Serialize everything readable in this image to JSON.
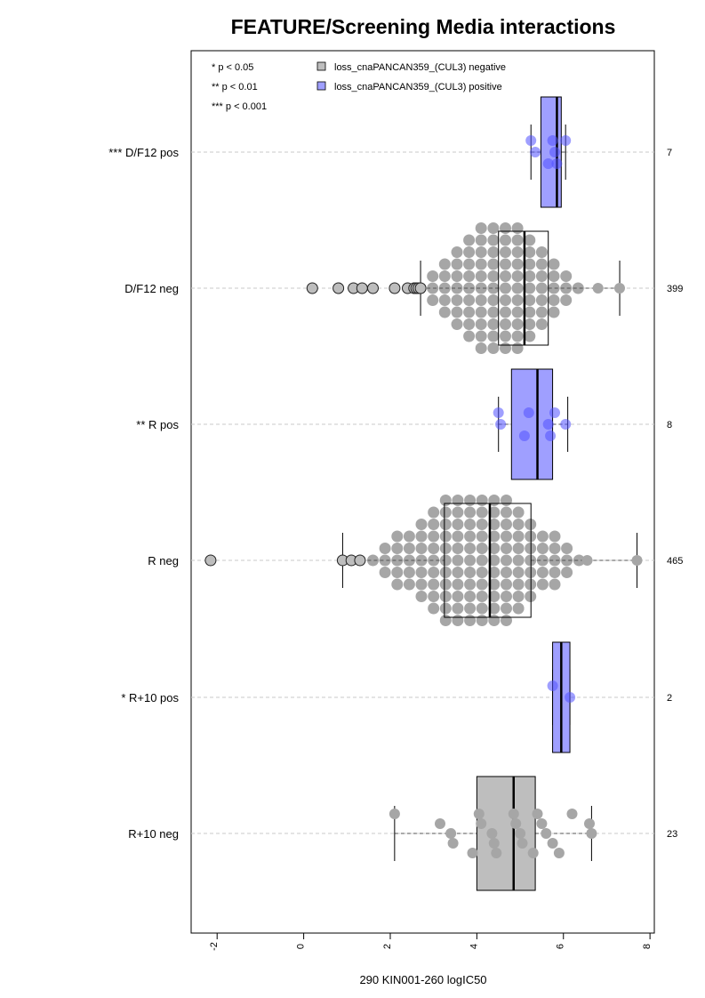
{
  "chart_data": {
    "type": "box",
    "title": "FEATURE/Screening Media interactions",
    "xlabel": "290 KIN001-260 logIC50",
    "xlim": [
      -2.6,
      8.1
    ],
    "xticks": [
      "-2",
      "0",
      "2",
      "4",
      "6",
      "8"
    ],
    "legend": {
      "placement": "top",
      "significance": [
        "* p < 0.05",
        "** p < 0.01",
        "*** p < 0.001"
      ],
      "entries": [
        {
          "label": "loss_cnaPANCAN359_(CUL3) negative",
          "color": "#bebebe"
        },
        {
          "label": "loss_cnaPANCAN359_(CUL3) positive",
          "color": "#9f9fff"
        }
      ]
    },
    "groups": [
      {
        "label": "*** D/F12 pos",
        "count": "7",
        "status": "positive",
        "whisker_low": 5.25,
        "q1": 5.48,
        "median": 5.85,
        "q3": 5.95,
        "whisker_high": 6.05,
        "points": [
          5.25,
          5.35,
          5.65,
          5.75,
          5.8,
          5.85,
          6.05
        ]
      },
      {
        "label": "D/F12 neg",
        "count": "399",
        "status": "negative",
        "whisker_low": 2.7,
        "q1": 4.5,
        "median": 5.1,
        "q3": 5.65,
        "whisker_high": 7.3,
        "points": [
          0.2,
          0.8,
          1.15,
          1.35,
          1.6,
          2.1,
          2.4,
          2.55,
          2.6,
          2.65,
          2.7,
          6.8,
          7.3
        ]
      },
      {
        "label": "** R pos",
        "count": "8",
        "status": "positive",
        "whisker_low": 4.5,
        "q1": 4.8,
        "median": 5.4,
        "q3": 5.75,
        "whisker_high": 6.1,
        "points": [
          4.5,
          4.55,
          5.1,
          5.2,
          5.65,
          5.7,
          5.8,
          6.05
        ]
      },
      {
        "label": "R neg",
        "count": "465",
        "status": "negative",
        "whisker_low": 0.9,
        "q1": 3.25,
        "median": 4.3,
        "q3": 5.25,
        "whisker_high": 7.7,
        "points": [
          -2.15,
          0.9,
          1.1,
          1.3,
          6.55,
          7.7
        ]
      },
      {
        "label": "* R+10 pos",
        "count": "2",
        "status": "positive",
        "whisker_low": 5.75,
        "q1": 5.75,
        "median": 5.95,
        "q3": 6.15,
        "whisker_high": 6.15,
        "points": [
          5.75,
          6.15
        ]
      },
      {
        "label": "R+10 neg",
        "count": "23",
        "status": "negative",
        "whisker_low": 2.1,
        "q1": 4.0,
        "median": 4.85,
        "q3": 5.35,
        "whisker_high": 6.65,
        "points": [
          2.1,
          3.15,
          3.4,
          3.45,
          3.9,
          4.05,
          4.1,
          4.35,
          4.4,
          4.45,
          4.85,
          4.9,
          5.0,
          5.05,
          5.3,
          5.4,
          5.5,
          5.6,
          5.75,
          5.9,
          6.2,
          6.6,
          6.65
        ]
      }
    ]
  }
}
